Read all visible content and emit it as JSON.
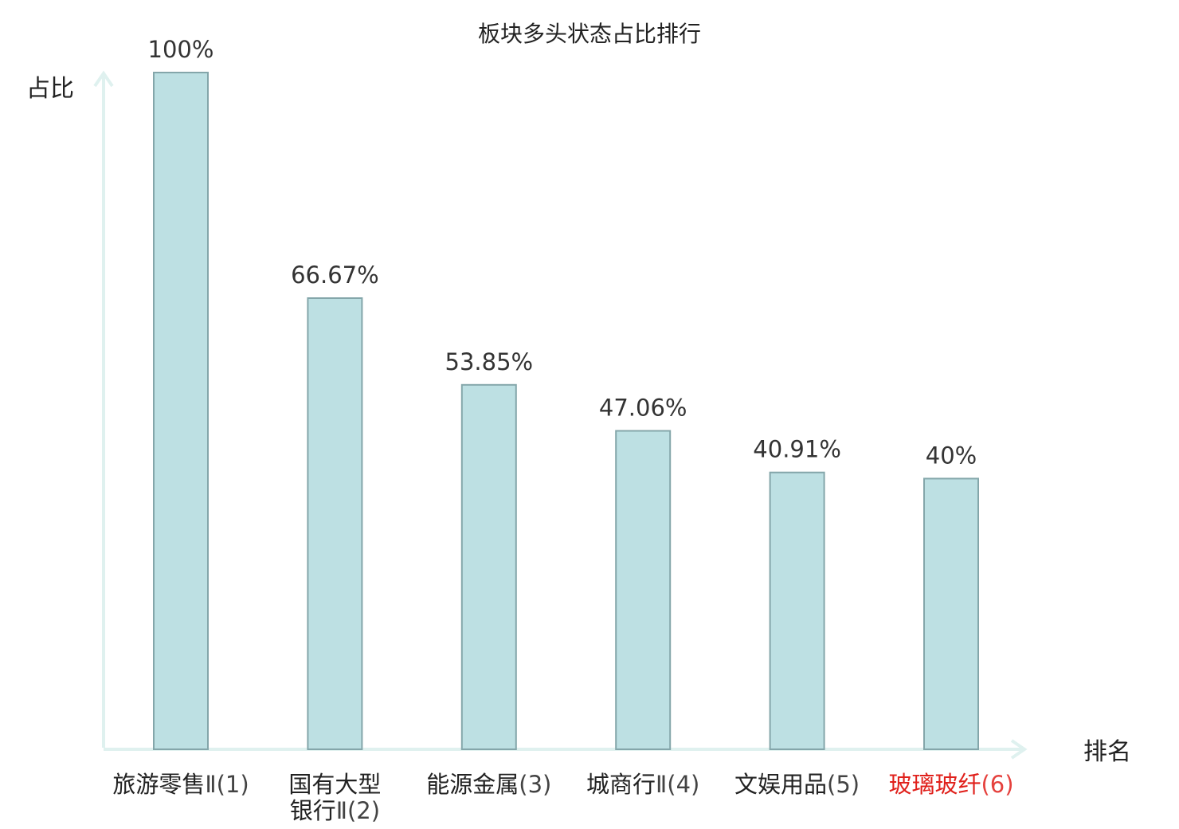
{
  "chart_data": {
    "type": "bar",
    "title": "板块多头状态占比排行",
    "ylabel": "占比",
    "xlabel": "排名",
    "ylim": [
      0,
      100
    ],
    "grid": false,
    "categories": [
      {
        "name_lines": [
          "旅游零售"
        ],
        "suffix_lines": [
          "Ⅱ(1)"
        ],
        "highlight": false
      },
      {
        "name_lines": [
          "国有大型",
          "银行"
        ],
        "suffix_lines": [
          "",
          "Ⅱ(2)"
        ],
        "highlight": false
      },
      {
        "name_lines": [
          "能源金属"
        ],
        "suffix_lines": [
          "(3)"
        ],
        "highlight": false
      },
      {
        "name_lines": [
          "城商行"
        ],
        "suffix_lines": [
          "Ⅱ(4)"
        ],
        "highlight": false
      },
      {
        "name_lines": [
          "文娱用品"
        ],
        "suffix_lines": [
          "(5)"
        ],
        "highlight": false
      },
      {
        "name_lines": [
          "玻璃玻纤"
        ],
        "suffix_lines": [
          "(6)"
        ],
        "highlight": true
      }
    ],
    "values": [
      100,
      66.67,
      53.85,
      47.06,
      40.91,
      40
    ],
    "value_labels": [
      "100%",
      "66.67%",
      "53.85%",
      "47.06%",
      "40.91%",
      "40%"
    ],
    "colors": {
      "bar_fill": "#bde0e3",
      "bar_stroke": "#84a6aa",
      "axis": "#dff1ef",
      "highlight_text": "#e0201b",
      "label_text": "#222222"
    }
  }
}
